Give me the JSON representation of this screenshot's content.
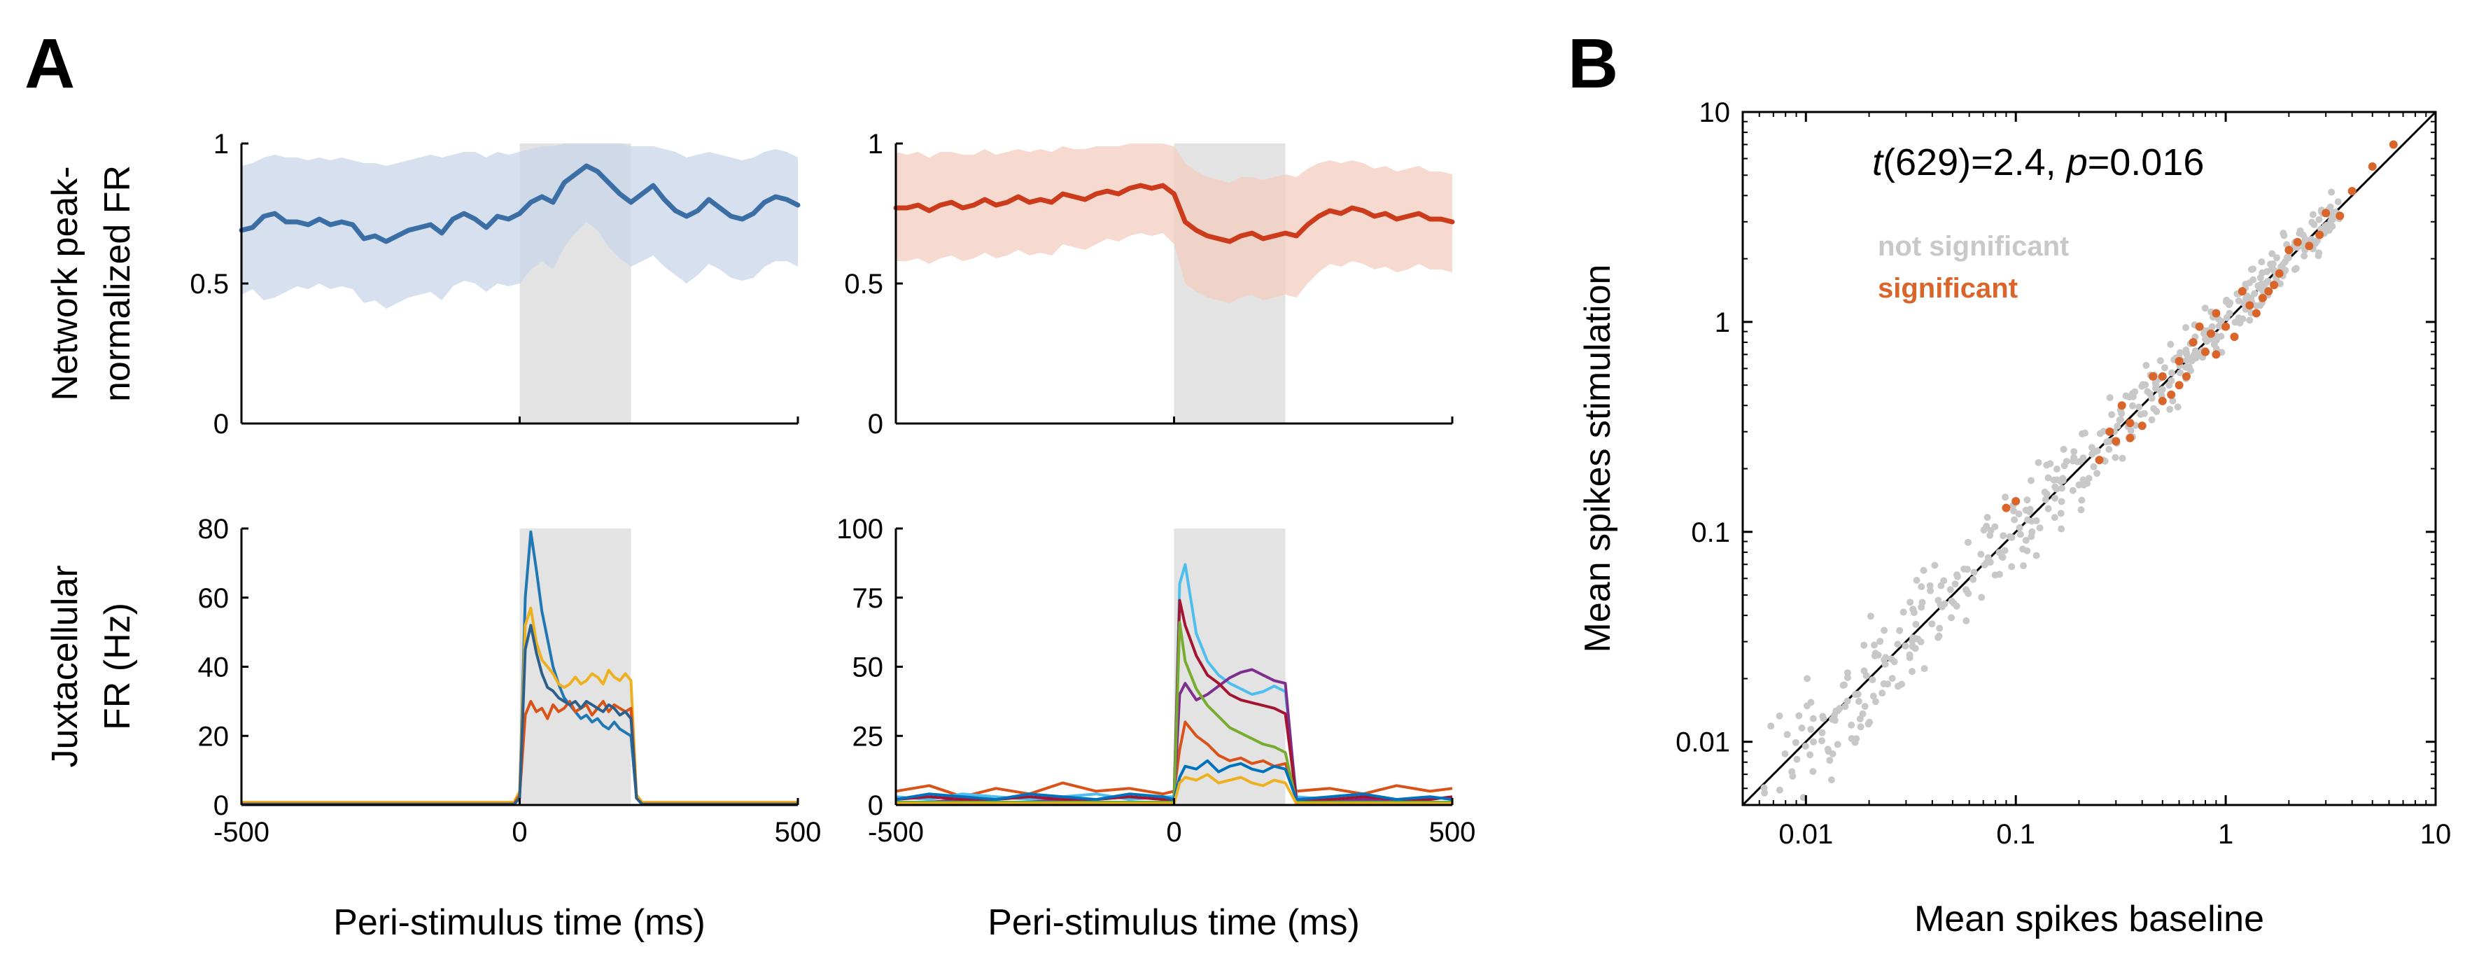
{
  "panels": {
    "a": "A",
    "b": "B"
  },
  "colors": {
    "blue": "#3a6ea5",
    "blue_band": "#c8d6e8",
    "red": "#cc3b1b",
    "red_band": "#f4cdbf",
    "stim_shade": "#e3e3e3",
    "gray_dot": "#c8c8c8",
    "orange_dot": "#d9652b"
  },
  "chart_data": [
    {
      "id": "a-top-left",
      "type": "line",
      "ylabel_lines": [
        "Network peak-",
        "normalized FR"
      ],
      "xlim": [
        -500,
        500
      ],
      "ylim": [
        0,
        1
      ],
      "yticks": [
        "0",
        "0.5",
        "1"
      ],
      "stim_window": [
        0,
        200
      ],
      "x": [
        -500,
        -480,
        -460,
        -440,
        -420,
        -400,
        -380,
        -360,
        -340,
        -320,
        -300,
        -280,
        -260,
        -240,
        -220,
        -200,
        -180,
        -160,
        -140,
        -120,
        -100,
        -80,
        -60,
        -40,
        -20,
        0,
        20,
        40,
        60,
        80,
        100,
        120,
        140,
        160,
        180,
        200,
        220,
        240,
        260,
        280,
        300,
        320,
        340,
        360,
        380,
        400,
        420,
        440,
        460,
        480,
        500
      ],
      "mean": [
        0.69,
        0.7,
        0.74,
        0.75,
        0.72,
        0.72,
        0.71,
        0.73,
        0.71,
        0.72,
        0.71,
        0.66,
        0.67,
        0.65,
        0.67,
        0.69,
        0.7,
        0.71,
        0.68,
        0.73,
        0.75,
        0.73,
        0.7,
        0.74,
        0.73,
        0.75,
        0.79,
        0.81,
        0.79,
        0.86,
        0.89,
        0.92,
        0.9,
        0.86,
        0.82,
        0.79,
        0.82,
        0.85,
        0.8,
        0.76,
        0.74,
        0.76,
        0.8,
        0.77,
        0.74,
        0.73,
        0.75,
        0.79,
        0.81,
        0.8,
        0.78
      ],
      "upper": [
        0.92,
        0.93,
        0.95,
        0.96,
        0.95,
        0.95,
        0.94,
        0.95,
        0.94,
        0.95,
        0.94,
        0.93,
        0.93,
        0.92,
        0.93,
        0.94,
        0.95,
        0.96,
        0.95,
        0.96,
        0.97,
        0.97,
        0.95,
        0.97,
        0.96,
        0.97,
        0.98,
        0.99,
        0.99,
        1.0,
        1.0,
        1.0,
        1.0,
        1.0,
        1.0,
        0.99,
        0.99,
        0.99,
        0.98,
        0.97,
        0.95,
        0.96,
        0.97,
        0.96,
        0.95,
        0.94,
        0.95,
        0.97,
        0.98,
        0.97,
        0.95
      ],
      "lower": [
        0.46,
        0.48,
        0.44,
        0.45,
        0.47,
        0.49,
        0.48,
        0.5,
        0.48,
        0.49,
        0.48,
        0.43,
        0.44,
        0.41,
        0.43,
        0.45,
        0.46,
        0.47,
        0.44,
        0.49,
        0.51,
        0.5,
        0.47,
        0.5,
        0.49,
        0.5,
        0.55,
        0.58,
        0.55,
        0.63,
        0.68,
        0.72,
        0.69,
        0.63,
        0.59,
        0.56,
        0.58,
        0.6,
        0.56,
        0.53,
        0.5,
        0.53,
        0.57,
        0.55,
        0.52,
        0.51,
        0.52,
        0.56,
        0.58,
        0.58,
        0.56
      ]
    },
    {
      "id": "a-top-right",
      "type": "line",
      "xlim": [
        -500,
        500
      ],
      "ylim": [
        0,
        1
      ],
      "yticks": [
        "0",
        "0.5",
        "1"
      ],
      "stim_window": [
        0,
        200
      ],
      "x": [
        -500,
        -480,
        -460,
        -440,
        -420,
        -400,
        -380,
        -360,
        -340,
        -320,
        -300,
        -280,
        -260,
        -240,
        -220,
        -200,
        -180,
        -160,
        -140,
        -120,
        -100,
        -80,
        -60,
        -40,
        -20,
        0,
        20,
        40,
        60,
        80,
        100,
        120,
        140,
        160,
        180,
        200,
        220,
        240,
        260,
        280,
        300,
        320,
        340,
        360,
        380,
        400,
        420,
        440,
        460,
        480,
        500
      ],
      "mean": [
        0.77,
        0.77,
        0.78,
        0.76,
        0.78,
        0.79,
        0.77,
        0.78,
        0.8,
        0.78,
        0.79,
        0.81,
        0.79,
        0.8,
        0.79,
        0.82,
        0.81,
        0.8,
        0.82,
        0.83,
        0.82,
        0.84,
        0.85,
        0.84,
        0.85,
        0.82,
        0.72,
        0.69,
        0.67,
        0.66,
        0.65,
        0.67,
        0.68,
        0.66,
        0.67,
        0.68,
        0.67,
        0.71,
        0.74,
        0.76,
        0.75,
        0.77,
        0.76,
        0.74,
        0.75,
        0.73,
        0.74,
        0.75,
        0.73,
        0.73,
        0.72
      ],
      "upper": [
        0.97,
        0.96,
        0.97,
        0.95,
        0.97,
        0.97,
        0.96,
        0.96,
        0.98,
        0.96,
        0.97,
        0.98,
        0.97,
        0.98,
        0.97,
        0.99,
        0.98,
        0.98,
        0.99,
        0.99,
        0.99,
        1.0,
        1.0,
        1.0,
        1.0,
        0.99,
        0.93,
        0.9,
        0.88,
        0.87,
        0.86,
        0.88,
        0.88,
        0.87,
        0.88,
        0.89,
        0.88,
        0.91,
        0.93,
        0.94,
        0.93,
        0.94,
        0.93,
        0.91,
        0.92,
        0.9,
        0.91,
        0.92,
        0.9,
        0.9,
        0.89
      ],
      "lower": [
        0.58,
        0.58,
        0.59,
        0.57,
        0.59,
        0.6,
        0.58,
        0.59,
        0.61,
        0.59,
        0.6,
        0.62,
        0.6,
        0.61,
        0.6,
        0.64,
        0.63,
        0.62,
        0.64,
        0.66,
        0.65,
        0.67,
        0.68,
        0.67,
        0.68,
        0.64,
        0.5,
        0.47,
        0.45,
        0.44,
        0.43,
        0.45,
        0.46,
        0.44,
        0.45,
        0.46,
        0.45,
        0.5,
        0.54,
        0.57,
        0.56,
        0.58,
        0.57,
        0.55,
        0.56,
        0.54,
        0.55,
        0.57,
        0.55,
        0.55,
        0.54
      ]
    },
    {
      "id": "a-bottom-left",
      "type": "line",
      "ylabel_lines": [
        "Juxtacellular",
        "FR (Hz)"
      ],
      "xlabel": "Peri-stimulus time (ms)",
      "xlim": [
        -500,
        500
      ],
      "ylim": [
        0,
        80
      ],
      "yticks": [
        "0",
        "20",
        "40",
        "60",
        "80"
      ],
      "xticks": [
        "-500",
        "0",
        "500"
      ],
      "stim_window": [
        0,
        200
      ],
      "x": [
        -500,
        -10,
        0,
        10,
        20,
        30,
        40,
        50,
        60,
        70,
        80,
        90,
        100,
        110,
        120,
        130,
        140,
        150,
        160,
        170,
        180,
        190,
        200,
        210,
        220,
        500
      ],
      "series": [
        {
          "color": "#1f77b4",
          "values": [
            0.5,
            0.5,
            3,
            60,
            79,
            68,
            56,
            48,
            40,
            35,
            31,
            29,
            27,
            25,
            26,
            24,
            25,
            23,
            22,
            24,
            22,
            21,
            20,
            2,
            0.5,
            0.5
          ]
        },
        {
          "color": "#edb120",
          "values": [
            0.8,
            0.8,
            4,
            52,
            57,
            47,
            42,
            40,
            38,
            35,
            34,
            35,
            37,
            35,
            36,
            38,
            37,
            35,
            39,
            37,
            36,
            38,
            36,
            3,
            0.8,
            0.8
          ]
        },
        {
          "color": "#d95319",
          "values": [
            0.3,
            0.3,
            3,
            26,
            30,
            27,
            28,
            25,
            29,
            27,
            28,
            30,
            27,
            28,
            29,
            26,
            28,
            30,
            27,
            29,
            28,
            27,
            28,
            2,
            0.3,
            0.3
          ]
        },
        {
          "color": "#2c5f8a",
          "values": [
            0.2,
            0.2,
            2,
            45,
            52,
            44,
            38,
            34,
            33,
            31,
            30,
            29,
            30,
            28,
            30,
            29,
            28,
            27,
            29,
            28,
            26,
            27,
            25,
            2,
            0.2,
            0.2
          ]
        }
      ]
    },
    {
      "id": "a-bottom-right",
      "type": "line",
      "xlabel": "Peri-stimulus time (ms)",
      "xlim": [
        -500,
        500
      ],
      "ylim": [
        0,
        100
      ],
      "yticks": [
        "0",
        "25",
        "50",
        "75",
        "100"
      ],
      "xticks": [
        "-500",
        "0",
        "500"
      ],
      "stim_window": [
        0,
        200
      ],
      "x": [
        -500,
        -440,
        -380,
        -320,
        -260,
        -200,
        -140,
        -80,
        -20,
        0,
        10,
        20,
        40,
        60,
        80,
        100,
        120,
        140,
        160,
        180,
        200,
        220,
        280,
        340,
        400,
        460,
        500
      ],
      "series": [
        {
          "color": "#d95319",
          "values": [
            5,
            7,
            3,
            6,
            4,
            8,
            5,
            6,
            4,
            5,
            20,
            30,
            25,
            22,
            18,
            16,
            17,
            15,
            16,
            14,
            15,
            5,
            6,
            4,
            7,
            5,
            6
          ]
        },
        {
          "color": "#4dbeee",
          "values": [
            3,
            2,
            4,
            3,
            2,
            3,
            4,
            2,
            3,
            3,
            80,
            87,
            62,
            52,
            47,
            44,
            42,
            40,
            41,
            43,
            41,
            3,
            2,
            3,
            2,
            3,
            2
          ]
        },
        {
          "color": "#7e2f8e",
          "values": [
            1,
            1,
            2,
            1,
            1,
            2,
            1,
            1,
            1,
            1,
            40,
            44,
            38,
            40,
            43,
            46,
            48,
            49,
            47,
            45,
            44,
            1,
            1,
            2,
            1,
            1,
            1
          ]
        },
        {
          "color": "#a2142f",
          "values": [
            2,
            3,
            2,
            2,
            3,
            2,
            2,
            3,
            2,
            2,
            74,
            65,
            54,
            47,
            44,
            40,
            38,
            37,
            36,
            35,
            33,
            2,
            2,
            3,
            2,
            2,
            3
          ]
        },
        {
          "color": "#77ac30",
          "values": [
            1,
            1,
            1,
            1,
            1,
            1,
            1,
            1,
            1,
            1,
            66,
            52,
            42,
            36,
            32,
            28,
            26,
            24,
            22,
            21,
            19,
            1,
            1,
            1,
            1,
            1,
            1
          ]
        },
        {
          "color": "#0072bd",
          "values": [
            2,
            4,
            3,
            2,
            4,
            3,
            2,
            4,
            3,
            2,
            10,
            14,
            13,
            16,
            12,
            14,
            15,
            13,
            12,
            14,
            13,
            2,
            3,
            4,
            2,
            3,
            2
          ]
        },
        {
          "color": "#edb120",
          "values": [
            0.5,
            0.5,
            0.5,
            0.5,
            0.5,
            0.5,
            0.5,
            0.5,
            0.5,
            0.5,
            8,
            10,
            9,
            11,
            8,
            9,
            10,
            8,
            7,
            9,
            8,
            0.5,
            0.5,
            0.5,
            0.5,
            0.5,
            0.5
          ]
        }
      ]
    },
    {
      "id": "b-scatter",
      "type": "scatter",
      "xlabel": "Mean spikes baseline",
      "ylabel": "Mean spikes stimulation",
      "xscale": "log",
      "yscale": "log",
      "xlim": [
        0.005,
        10
      ],
      "ylim": [
        0.005,
        10
      ],
      "xticks": [
        "0.01",
        "0.1",
        "1",
        "10"
      ],
      "yticks": [
        "0.01",
        "0.1",
        "1",
        "10"
      ],
      "annotation": {
        "t_symbol": "t",
        "t_text": "(629)=2.4, ",
        "p_symbol": "p",
        "p_text": "=0.016"
      },
      "legend": {
        "not_significant": "not significant",
        "significant": "significant"
      },
      "identity_line": true,
      "significant_points": [
        [
          0.09,
          0.13
        ],
        [
          0.1,
          0.14
        ],
        [
          0.25,
          0.22
        ],
        [
          0.28,
          0.3
        ],
        [
          0.3,
          0.27
        ],
        [
          0.32,
          0.4
        ],
        [
          0.35,
          0.33
        ],
        [
          0.4,
          0.32
        ],
        [
          0.45,
          0.55
        ],
        [
          0.5,
          0.42
        ],
        [
          0.55,
          0.45
        ],
        [
          0.6,
          0.65
        ],
        [
          0.65,
          0.55
        ],
        [
          0.7,
          0.8
        ],
        [
          0.75,
          0.95
        ],
        [
          0.8,
          0.72
        ],
        [
          0.85,
          0.88
        ],
        [
          0.9,
          1.1
        ],
        [
          1.0,
          0.95
        ],
        [
          1.1,
          0.85
        ],
        [
          1.2,
          1.4
        ],
        [
          1.3,
          1.2
        ],
        [
          1.4,
          1.1
        ],
        [
          1.5,
          1.3
        ],
        [
          1.7,
          1.5
        ],
        [
          1.8,
          1.7
        ],
        [
          2.0,
          2.2
        ],
        [
          2.2,
          2.4
        ],
        [
          2.5,
          2.3
        ],
        [
          2.8,
          2.6
        ],
        [
          3.0,
          3.3
        ],
        [
          3.5,
          3.2
        ],
        [
          4.0,
          4.2
        ],
        [
          5.0,
          5.5
        ],
        [
          6.3,
          7.0
        ],
        [
          0.5,
          0.55
        ],
        [
          0.6,
          0.5
        ],
        [
          0.35,
          0.28
        ],
        [
          1.6,
          1.4
        ],
        [
          0.9,
          0.7
        ]
      ]
    }
  ]
}
